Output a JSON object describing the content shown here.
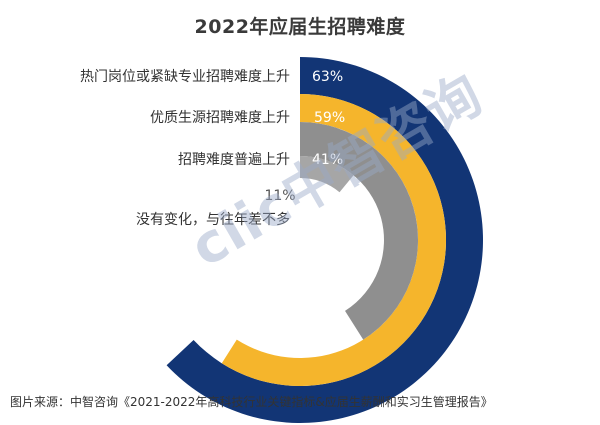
{
  "chart_data": {
    "type": "radial-bar",
    "title": "2022年应届生招聘难度",
    "categories": [
      "热门岗位或紧缺专业招聘难度上升",
      "优质生源招聘难度上升",
      "招聘难度普遍上升",
      "没有变化，与往年差不多"
    ],
    "values": [
      63,
      59,
      41,
      11
    ],
    "value_labels": [
      "63%",
      "59%",
      "41%",
      "11%"
    ],
    "value_max": 100,
    "colors": [
      "#123575",
      "#f5b52c",
      "#8f8f8f",
      "#a6a6a6"
    ],
    "legend": "none",
    "grid": false
  },
  "watermark": {
    "text": "ciic中智咨询"
  },
  "source_note": "图片来源：中智咨询《2021-2022年高科技行业关键指标&应届生薪酬和实习生管理报告》"
}
